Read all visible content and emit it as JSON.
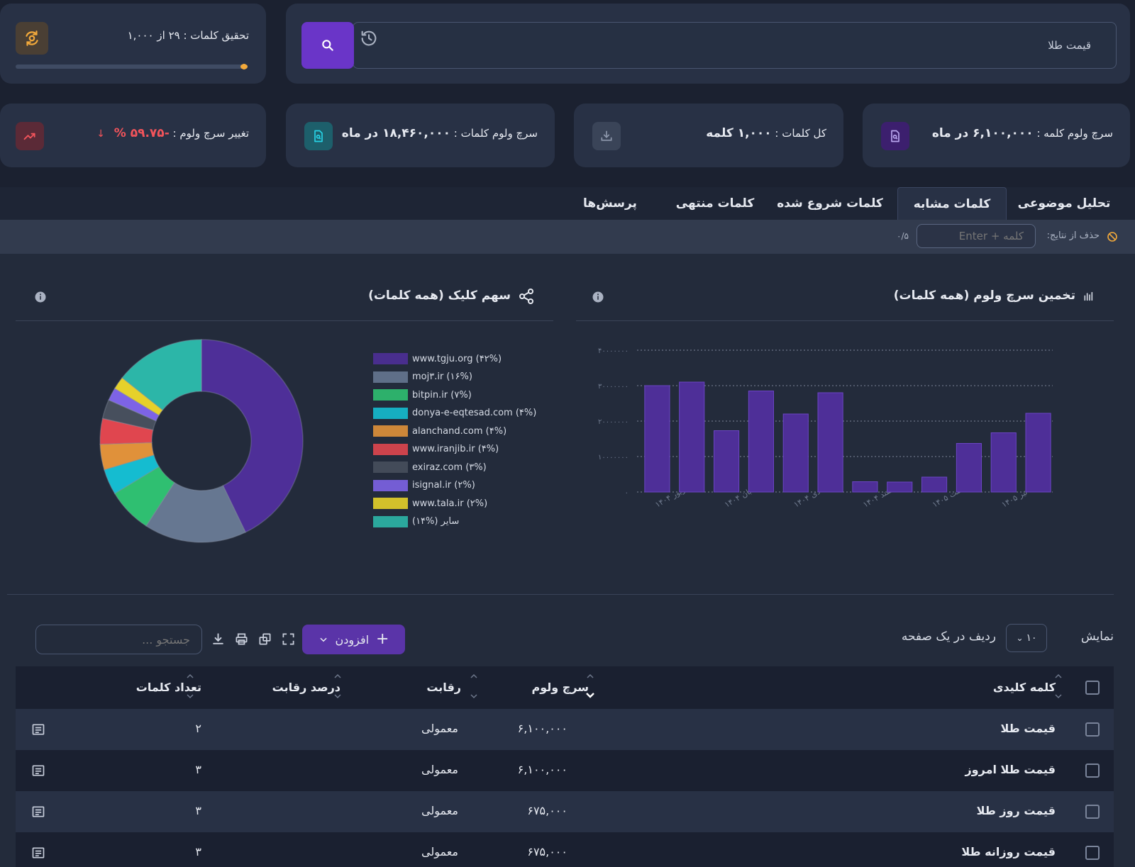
{
  "search": {
    "value": "قیمت طلا"
  },
  "quota": {
    "label": "تحقیق کلمات : ۲۹ از ۱,۰۰۰",
    "progress": 0.029
  },
  "stats": [
    {
      "label": "سرچ ولوم کلمه : ",
      "value": "۶,۱۰۰,۰۰۰ در ماه",
      "icon": "document-search-icon",
      "icon_bg": "#3c1f6e"
    },
    {
      "label": "کل کلمات : ",
      "value": "۱,۰۰۰ کلمه",
      "icon": "download-icon",
      "icon_bg": "#3a4458"
    },
    {
      "label": "سرچ ولوم کلمات : ",
      "value": "۱۸,۴۶۰,۰۰۰ در ماه",
      "icon": "document-search-icon",
      "icon_bg": "#1d5f6b"
    },
    {
      "label": "تغییر سرچ ولوم : ",
      "value": "-۵۹.۷۵ %",
      "icon": "trend-up-icon",
      "icon_bg": "#5b2a37"
    }
  ],
  "tabs": [
    {
      "label": "تحلیل موضوعی",
      "active": false
    },
    {
      "label": "کلمات مشابه",
      "active": true
    },
    {
      "label": "کلمات شروع شده",
      "active": false
    },
    {
      "label": "کلمات منتهی",
      "active": false
    },
    {
      "label": "پرسش‌ها",
      "active": false
    }
  ],
  "filter": {
    "label": "حذف از نتایج:",
    "placeholder": "کلمه + Enter",
    "count": "۰/۵"
  },
  "volume_panel": {
    "title": "تخمین سرچ ولوم (همه کلمات)"
  },
  "share_panel": {
    "title": "سهم کلیک (همه کلمات)"
  },
  "chart_data": [
    {
      "type": "bar",
      "title": "تخمین سرچ ولوم (همه کلمات)",
      "y_ticks": [
        "۴۰۰۰۰۰۰۰",
        "۳۰۰۰۰۰۰۰",
        "۲۰۰۰۰۰۰۰",
        "۱۰۰۰۰۰۰۰",
        "۰"
      ],
      "ylim": [
        0,
        40000000
      ],
      "grid": true,
      "categories": [
        "شهریور ۱۴۰۴",
        "",
        "آبان ۱۴۰۴",
        "",
        "دی ۱۴۰۴",
        "",
        "اسفند ۱۴۰۴",
        "",
        "اردیبهشت ۱۴۰۵",
        "",
        "تیر ۱۴۰۵",
        ""
      ],
      "values": [
        30000000,
        31000000,
        17300000,
        28500000,
        22000000,
        28000000,
        2900000,
        2800000,
        4200000,
        13700000,
        16700000,
        22200000
      ],
      "color": "#4e2f98"
    },
    {
      "type": "pie",
      "title": "سهم کلیک (همه کلمات)",
      "legend_position": "right",
      "slices": [
        {
          "label": "www.tgju.org (۴۲%)",
          "value": 42,
          "color": "#4e2f98"
        },
        {
          "label": "moj۳.ir (۱۶%)",
          "value": 16,
          "color": "#667791"
        },
        {
          "label": "bitpin.ir (۷%)",
          "value": 7,
          "color": "#2fbf71"
        },
        {
          "label": "donya-e-eqtesad.com (۴%)",
          "value": 4,
          "color": "#15bcd0"
        },
        {
          "label": "alanchand.com (۴%)",
          "value": 4,
          "color": "#e0913a"
        },
        {
          "label": "www.iranjib.ir (۴%)",
          "value": 4,
          "color": "#e0464f"
        },
        {
          "label": "exiraz.com (۳%)",
          "value": 3,
          "color": "#474f5d"
        },
        {
          "label": "isignal.ir (۲%)",
          "value": 2,
          "color": "#7d63e6"
        },
        {
          "label": "www.tala.ir (۲%)",
          "value": 2,
          "color": "#e6d12a"
        },
        {
          "label": "سایر (%۱۴)",
          "value": 14,
          "color": "#2cb6a8"
        }
      ]
    }
  ],
  "table_controls": {
    "show_label": "نمایش",
    "rows_value": "۱۰",
    "rows_label": "ردیف در یک صفحه",
    "add_label": "افزودن",
    "search_placeholder": "جستجو ..."
  },
  "table": {
    "headers": {
      "keyword": "کلمه کلیدی",
      "volume": "سرچ ولوم",
      "competition": "رقابت",
      "competition_pct": "درصد رقابت",
      "word_count": "تعداد کلمات"
    },
    "rows": [
      {
        "keyword": "قیمت طلا",
        "volume": "۶,۱۰۰,۰۰۰",
        "competition": "معمولی",
        "competition_pct": "",
        "word_count": "۲"
      },
      {
        "keyword": "قیمت طلا امروز",
        "volume": "۶,۱۰۰,۰۰۰",
        "competition": "معمولی",
        "competition_pct": "",
        "word_count": "۳"
      },
      {
        "keyword": "قیمت روز طلا",
        "volume": "۶۷۵,۰۰۰",
        "competition": "معمولی",
        "competition_pct": "",
        "word_count": "۳"
      },
      {
        "keyword": "قیمت روزانه طلا",
        "volume": "۶۷۵,۰۰۰",
        "competition": "معمولی",
        "competition_pct": "",
        "word_count": "۳"
      }
    ]
  }
}
